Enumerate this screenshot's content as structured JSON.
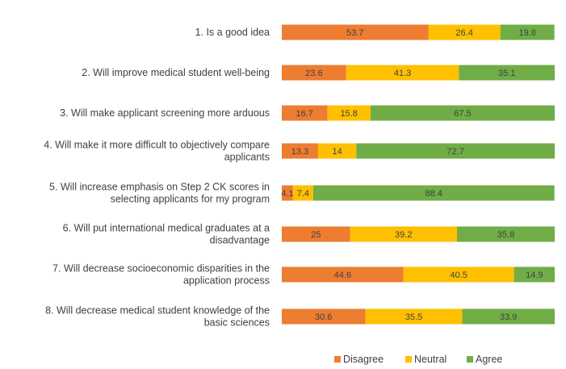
{
  "chart_data": {
    "type": "bar",
    "orientation": "horizontal",
    "stacked": true,
    "title": "",
    "xlabel": "",
    "ylabel": "",
    "xlim": [
      0,
      100
    ],
    "grid": false,
    "legend_position": "bottom",
    "categories": [
      [
        "1. Is a good idea"
      ],
      [
        "2. Will improve medical student well-being"
      ],
      [
        "3. Will make applicant screening more arduous"
      ],
      [
        "4. Will make it more difficult to objectively compare",
        "applicants"
      ],
      [
        "5. Will increase emphasis on Step 2 CK scores in",
        "selecting applicants for my program"
      ],
      [
        "6. Will put international medical graduates at a",
        "disadvantage"
      ],
      [
        "7. Will decrease socioeconomic disparities in the",
        "application process"
      ],
      [
        "8. Will decrease medical student knowledge of the",
        "basic sciences"
      ]
    ],
    "series": [
      {
        "name": "Disagree",
        "color": "#ED7D31",
        "values": [
          53.7,
          23.6,
          16.7,
          13.3,
          4.1,
          25,
          44.6,
          30.6
        ],
        "labels": [
          "53.7",
          "23.6",
          "16.7",
          "13.3",
          "4.1",
          "25",
          "44.6",
          "30.6"
        ]
      },
      {
        "name": "Neutral",
        "color": "#FFC000",
        "values": [
          26.4,
          41.3,
          15.8,
          14,
          7.4,
          39.2,
          40.5,
          35.5
        ],
        "labels": [
          "26.4",
          "41.3",
          "15.8",
          "14",
          "7.4",
          "39.2",
          "40.5",
          "35.5"
        ]
      },
      {
        "name": "Agree",
        "color": "#70AD47",
        "values": [
          19.8,
          35.1,
          67.5,
          72.7,
          88.4,
          35.8,
          14.9,
          33.9
        ],
        "labels": [
          "19.8",
          "35.1",
          "67.5",
          "72.7",
          "88.4",
          "35.8",
          "14.9",
          "33.9"
        ]
      }
    ]
  }
}
